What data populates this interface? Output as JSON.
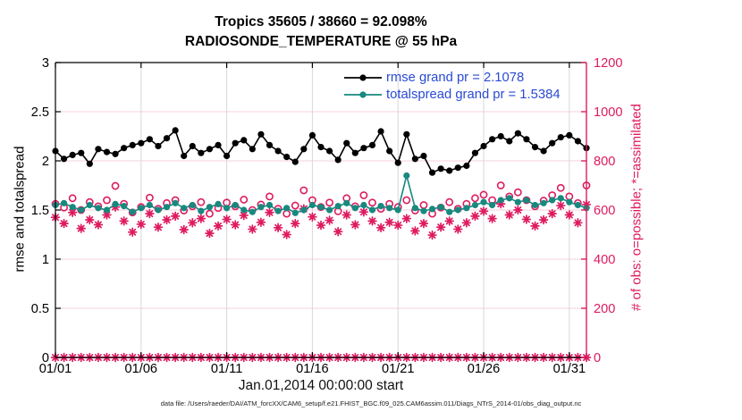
{
  "header": {
    "title_line1": "Tropics 35605 / 38660 = 92.098%",
    "title_line2": "RADIOSONDE_TEMPERATURE @ 55 hPa"
  },
  "legend": {
    "rmse_label": "rmse grand pr = 2.1078",
    "totalspread_label": "totalspread grand pr = 1.5384"
  },
  "axes": {
    "left_label": "rmse and totalspread",
    "right_label": "# of obs: o=possible; *=assimilated",
    "x_label": "Jan.01,2014 00:00:00 start"
  },
  "footer": {
    "data_file": "data file: /Users/raeder/DAI/ATM_forcXX/CAM6_setup/f.e21.FHIST_BGC.f09_025.CAM6assim.011/Diags_NTrS_2014-01/obs_diag_output.nc"
  },
  "colors": {
    "rmse": "#000000",
    "totalspread": "#17897f",
    "obs_pink": "#de1b60",
    "legend_text": "#2a4ad4",
    "grid_vertical": "#d8d8d8",
    "grid_horizontal": "#f5d0dc",
    "axis_black": "#000000"
  },
  "chart_data": {
    "type": "line",
    "title": "Tropics 35605 / 38660 = 92.098% | RADIOSONDE_TEMPERATURE @ 55 hPa",
    "xlabel": "Jan.01,2014 00:00:00 start",
    "ylabel_left": "rmse and totalspread",
    "ylabel_right": "# of obs: o=possible; *=assimilated",
    "grid": true,
    "legend_position": "top-center-inside",
    "x_start_day": 1,
    "x_step_days": 0.5,
    "xlim_days": [
      1,
      32
    ],
    "ylim_left": [
      0,
      3
    ],
    "ylim_right": [
      0,
      1200
    ],
    "xtick_days": [
      1,
      6,
      11,
      16,
      21,
      26,
      31
    ],
    "xtick_labels": [
      "01/01",
      "01/06",
      "01/11",
      "01/16",
      "01/21",
      "01/26",
      "01/31"
    ],
    "ytick_left_values": [
      0,
      0.5,
      1,
      1.5,
      2,
      2.5,
      3
    ],
    "ytick_left_labels": [
      "0",
      "0.5",
      "1",
      "1.5",
      "2",
      "2.5",
      "3"
    ],
    "ytick_right_values": [
      0,
      200,
      400,
      600,
      800,
      1000,
      1200
    ],
    "ytick_right_labels": [
      "0",
      "200",
      "400",
      "600",
      "800",
      "1000",
      "1200"
    ],
    "series": [
      {
        "name": "rmse",
        "axis": "left",
        "marker": "dot",
        "line": true,
        "color_key": "rmse",
        "grand_mean": 2.1078,
        "values": [
          2.1,
          2.02,
          2.06,
          2.08,
          1.97,
          2.12,
          2.09,
          2.07,
          2.13,
          2.16,
          2.18,
          2.22,
          2.15,
          2.23,
          2.31,
          2.05,
          2.15,
          2.08,
          2.12,
          2.16,
          2.05,
          2.18,
          2.21,
          2.12,
          2.27,
          2.16,
          2.1,
          2.04,
          1.99,
          2.12,
          2.26,
          2.14,
          2.1,
          2.01,
          2.18,
          2.08,
          2.13,
          2.16,
          2.3,
          2.1,
          1.98,
          2.27,
          2.02,
          2.05,
          1.88,
          1.92,
          1.9,
          1.93,
          1.95,
          2.08,
          2.15,
          2.22,
          2.25,
          2.2,
          2.28,
          2.22,
          2.14,
          2.1,
          2.18,
          2.24,
          2.26,
          2.2,
          2.13
        ]
      },
      {
        "name": "totalspread",
        "axis": "left",
        "marker": "dot",
        "line": true,
        "color_key": "totalspread",
        "grand_mean": 1.5384,
        "values": [
          1.55,
          1.57,
          1.53,
          1.5,
          1.55,
          1.52,
          1.5,
          1.56,
          1.54,
          1.48,
          1.52,
          1.55,
          1.5,
          1.53,
          1.57,
          1.52,
          1.55,
          1.49,
          1.53,
          1.56,
          1.52,
          1.55,
          1.5,
          1.48,
          1.53,
          1.55,
          1.49,
          1.52,
          1.47,
          1.5,
          1.55,
          1.53,
          1.5,
          1.54,
          1.57,
          1.52,
          1.55,
          1.5,
          1.54,
          1.52,
          1.5,
          1.85,
          1.52,
          1.49,
          1.51,
          1.53,
          1.48,
          1.5,
          1.52,
          1.55,
          1.58,
          1.55,
          1.6,
          1.62,
          1.58,
          1.6,
          1.55,
          1.57,
          1.6,
          1.62,
          1.58,
          1.55,
          1.52
        ]
      },
      {
        "name": "possible-obs",
        "axis": "right",
        "marker": "open-circle",
        "line": false,
        "color_key": "obs_pink",
        "values": [
          625,
          610,
          648,
          600,
          632,
          615,
          640,
          698,
          625,
          590,
          612,
          650,
          605,
          628,
          640,
          598,
          615,
          632,
          585,
          608,
          630,
          615,
          642,
          600,
          622,
          655,
          605,
          585,
          618,
          680,
          640,
          612,
          630,
          595,
          648,
          615,
          660,
          630,
          605,
          625,
          612,
          640,
          598,
          620,
          585,
          610,
          632,
          605,
          625,
          648,
          662,
          640,
          700,
          655,
          672,
          640,
          615,
          638,
          660,
          690,
          655,
          628,
          700
        ]
      },
      {
        "name": "assimilated-obs",
        "axis": "right",
        "marker": "asterisk",
        "line": false,
        "color_key": "obs_pink",
        "values": [
          570,
          545,
          590,
          525,
          560,
          540,
          580,
          612,
          555,
          510,
          542,
          585,
          530,
          560,
          575,
          520,
          548,
          565,
          505,
          535,
          562,
          540,
          578,
          522,
          550,
          590,
          528,
          500,
          545,
          605,
          572,
          538,
          558,
          512,
          580,
          540,
          592,
          555,
          528,
          550,
          538,
          565,
          515,
          545,
          498,
          530,
          555,
          522,
          548,
          575,
          595,
          565,
          625,
          580,
          600,
          562,
          535,
          560,
          585,
          618,
          580,
          548,
          622
        ]
      }
    ],
    "zero_row": {
      "name": "assimilated-zero-row",
      "axis": "right",
      "marker": "asterisk",
      "value": 0,
      "count": 63
    }
  }
}
